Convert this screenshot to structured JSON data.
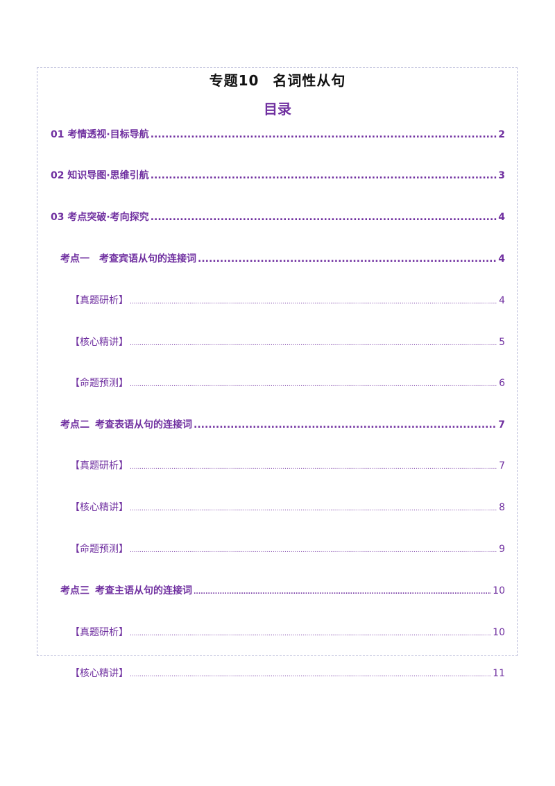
{
  "document": {
    "title_num": "专题10",
    "title_text": "名词性从句",
    "subtitle": "目录"
  },
  "toc": [
    {
      "label": "01 考情透视·目标导航",
      "page": "2"
    },
    {
      "label": "02 知识导图·思维引航",
      "page": "3"
    },
    {
      "label": "03 考点突破·考向探究",
      "page": "4"
    },
    {
      "label_a": "考点一",
      "label_b": "考查宾语从句的连接词",
      "page": "4"
    },
    {
      "label": "【真题研析】",
      "page": "4"
    },
    {
      "label": "【核心精讲】",
      "page": "5"
    },
    {
      "label": "【命题预测】",
      "page": "6"
    },
    {
      "label_a": "考点二",
      "label_b": "考查表语从句的连接词",
      "page": "7"
    },
    {
      "label": "【真题研析】",
      "page": "7"
    },
    {
      "label": "【核心精讲】",
      "page": "8"
    },
    {
      "label": "【命题预测】",
      "page": "9"
    },
    {
      "label_a": "考点三",
      "label_b": "考查主语从句的连接词",
      "page": "10"
    },
    {
      "label": "【真题研析】",
      "page": "10"
    },
    {
      "label": "【核心精讲】",
      "page": "11"
    }
  ]
}
